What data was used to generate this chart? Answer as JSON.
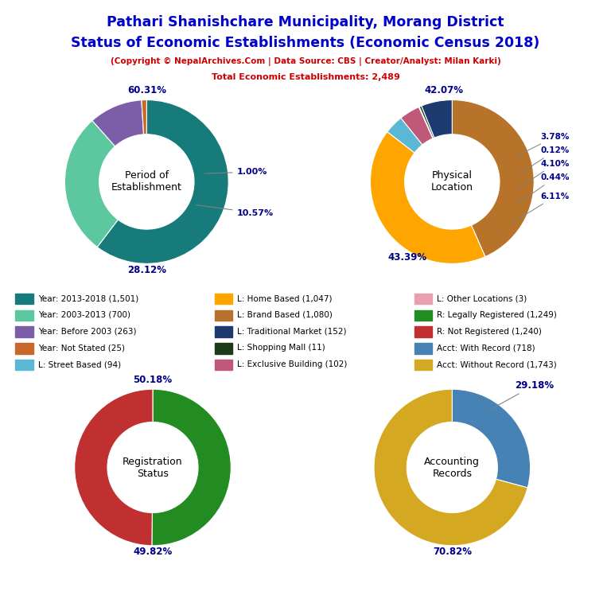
{
  "title_line1": "Pathari Shanishchare Municipality, Morang District",
  "title_line2": "Status of Economic Establishments (Economic Census 2018)",
  "subtitle1": "(Copyright © NepalArchives.Com | Data Source: CBS | Creator/Analyst: Milan Karki)",
  "subtitle2": "Total Economic Establishments: 2,489",
  "title_color": "#0000CC",
  "subtitle_color": "#CC0000",
  "pie1_title": "Period of\nEstablishment",
  "pie1_values": [
    60.31,
    28.12,
    10.57,
    1.0
  ],
  "pie1_colors": [
    "#177B7B",
    "#5DC8A0",
    "#7B5EA7",
    "#C8682A"
  ],
  "pie1_startangle": 90,
  "pie2_title": "Physical\nLocation",
  "pie2_values": [
    43.39,
    42.07,
    3.78,
    4.1,
    0.12,
    0.44,
    6.11
  ],
  "pie2_colors": [
    "#B8732A",
    "#FFA500",
    "#5BB8D4",
    "#C0587A",
    "#006060",
    "#1A3A1A",
    "#1C3A6E"
  ],
  "pie2_startangle": 90,
  "pie3_title": "Registration\nStatus",
  "pie3_values": [
    50.18,
    49.82
  ],
  "pie3_colors": [
    "#228B22",
    "#C03030"
  ],
  "pie3_startangle": 90,
  "pie4_title": "Accounting\nRecords",
  "pie4_values": [
    29.18,
    70.82
  ],
  "pie4_colors": [
    "#4682B4",
    "#D4A820"
  ],
  "pie4_startangle": 90,
  "legend_items": [
    {
      "label": "Year: 2013-2018 (1,501)",
      "color": "#177B7B"
    },
    {
      "label": "Year: 2003-2013 (700)",
      "color": "#5DC8A0"
    },
    {
      "label": "Year: Before 2003 (263)",
      "color": "#7B5EA7"
    },
    {
      "label": "Year: Not Stated (25)",
      "color": "#C8682A"
    },
    {
      "label": "L: Street Based (94)",
      "color": "#5BB8D4"
    },
    {
      "label": "L: Home Based (1,047)",
      "color": "#FFA500"
    },
    {
      "label": "L: Brand Based (1,080)",
      "color": "#B8732A"
    },
    {
      "label": "L: Traditional Market (152)",
      "color": "#1C3A6E"
    },
    {
      "label": "L: Shopping Mall (11)",
      "color": "#1A3A1A"
    },
    {
      "label": "L: Exclusive Building (102)",
      "color": "#C0587A"
    },
    {
      "label": "L: Other Locations (3)",
      "color": "#E8A0B0"
    },
    {
      "label": "R: Legally Registered (1,249)",
      "color": "#228B22"
    },
    {
      "label": "R: Not Registered (1,240)",
      "color": "#C03030"
    },
    {
      "label": "Acct: With Record (718)",
      "color": "#4682B4"
    },
    {
      "label": "Acct: Without Record (1,743)",
      "color": "#D4A820"
    }
  ],
  "label_color": "#00008B",
  "background_color": "#FFFFFF"
}
